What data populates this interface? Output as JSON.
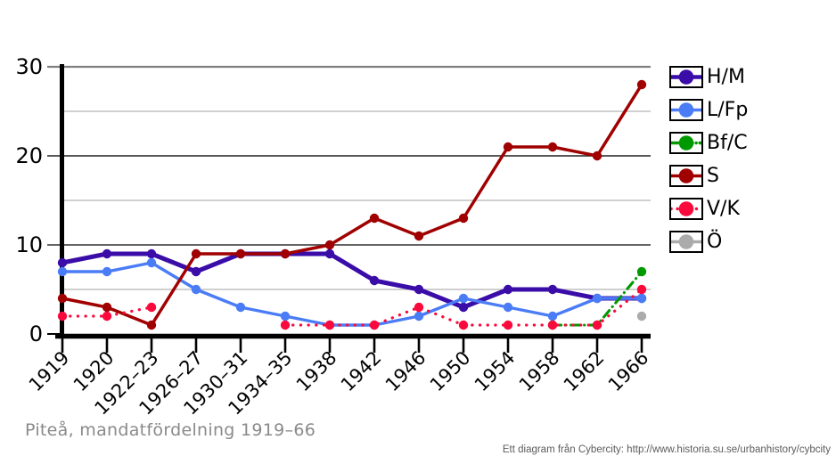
{
  "title": "Piteå, mandatfördelning 1919–66",
  "footer": "Ett diagram från Cybercity: http://www.historia.su.se/urbanhistory/cybcity",
  "chart_data": {
    "type": "line",
    "title": "Piteå, mandatfördelning 1919–66",
    "categories": [
      "1919",
      "1920",
      "1922–23",
      "1926–27",
      "1930–31",
      "1934–35",
      "1938",
      "1942",
      "1946",
      "1950",
      "1954",
      "1958",
      "1962",
      "1966"
    ],
    "ylim": [
      0,
      30
    ],
    "yticks": [
      0,
      10,
      20,
      30
    ],
    "minor_yticks": [
      5,
      15,
      25
    ],
    "grid": true,
    "legend_position": "right",
    "series": [
      {
        "name": "H/M",
        "color": "#3A0CA8",
        "line_style": "solid",
        "values": [
          8,
          9,
          9,
          7,
          9,
          9,
          9,
          6,
          5,
          3,
          5,
          5,
          4,
          4
        ]
      },
      {
        "name": "L/Fp",
        "color": "#4A7CF6",
        "line_style": "solid",
        "values": [
          7,
          7,
          8,
          5,
          3,
          2,
          1,
          1,
          2,
          4,
          3,
          2,
          4,
          4
        ]
      },
      {
        "name": "Bf/C",
        "color": "#009900",
        "line_style": "dashdot",
        "values": [
          null,
          null,
          null,
          null,
          null,
          null,
          null,
          null,
          null,
          null,
          null,
          1,
          1,
          7
        ]
      },
      {
        "name": "S",
        "color": "#A00000",
        "line_style": "solid",
        "values": [
          4,
          3,
          1,
          9,
          9,
          9,
          10,
          13,
          11,
          13,
          21,
          21,
          20,
          28
        ]
      },
      {
        "name": "V/K",
        "color": "#FA0A3C",
        "line_style": "dotted",
        "values": [
          2,
          2,
          3,
          null,
          null,
          1,
          1,
          1,
          3,
          1,
          1,
          1,
          1,
          5
        ]
      },
      {
        "name": "Ö",
        "color": "#ABABAB",
        "line_style": "solid",
        "values": [
          null,
          null,
          null,
          null,
          null,
          null,
          null,
          null,
          null,
          null,
          null,
          null,
          null,
          2
        ]
      }
    ]
  }
}
